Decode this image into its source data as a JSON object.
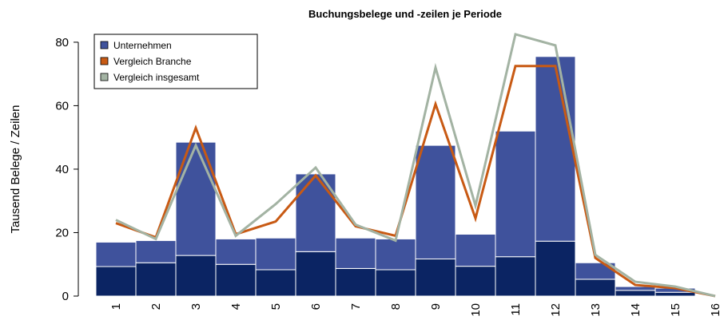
{
  "chart_data": {
    "type": "bar",
    "title": "Buchungsbelege und -zeilen je Periode",
    "y_label": "Tausend Belege / Zeilen",
    "categories": [
      "1",
      "2",
      "3",
      "4",
      "5",
      "6",
      "7",
      "8",
      "9",
      "10",
      "11",
      "12",
      "13",
      "14",
      "15",
      "16"
    ],
    "series": [
      {
        "color": "#0b2463",
        "values": [
          9.3,
          10.5,
          12.8,
          10,
          8.3,
          14,
          8.7,
          8.3,
          11.7,
          9.4,
          12.4,
          17.3,
          5.3,
          1.8,
          1.2,
          0
        ]
      },
      {
        "name": "Unternehmen",
        "color": "#3f529c",
        "values": [
          7.7,
          7,
          35.7,
          8,
          10,
          24.5,
          9.6,
          9.7,
          35.8,
          10.1,
          39.6,
          58.2,
          5.2,
          1.2,
          1.3,
          0
        ]
      },
      {
        "name": "Vergleich Branche",
        "color": "#c85a14",
        "type": "line",
        "values": [
          23,
          18.5,
          53,
          19.5,
          23.5,
          38,
          22,
          19,
          60.5,
          24.5,
          72.5,
          72.5,
          12,
          3.5,
          2.5,
          0
        ]
      },
      {
        "name": "Vergleich insgesamt",
        "color": "#a3b3a3",
        "type": "line",
        "values": [
          24,
          18,
          47.5,
          19,
          29,
          40.5,
          22.5,
          17.5,
          72,
          28.5,
          82.5,
          79,
          13,
          4.5,
          3,
          0
        ]
      }
    ],
    "stacked": true,
    "ylim": [
      0,
      84
    ],
    "yticks": [
      0,
      20,
      40,
      60,
      80
    ],
    "legend": "top-left"
  }
}
